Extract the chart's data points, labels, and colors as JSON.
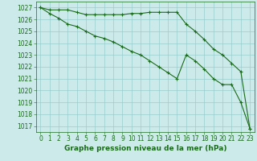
{
  "series1": {
    "x": [
      0,
      1,
      2,
      3,
      4,
      5,
      6,
      7,
      8,
      9,
      10,
      11,
      12,
      13,
      14,
      15,
      16,
      17,
      18,
      19,
      20,
      21,
      22,
      23
    ],
    "y": [
      1027.0,
      1026.8,
      1026.8,
      1026.8,
      1026.6,
      1026.4,
      1026.4,
      1026.4,
      1026.4,
      1026.4,
      1026.5,
      1026.5,
      1026.6,
      1026.6,
      1026.6,
      1026.6,
      1025.6,
      1025.0,
      1024.3,
      1023.5,
      1023.0,
      1022.3,
      1021.6,
      1016.8
    ]
  },
  "series2": {
    "x": [
      0,
      1,
      2,
      3,
      4,
      5,
      6,
      7,
      8,
      9,
      10,
      11,
      12,
      13,
      14,
      15,
      16,
      17,
      18,
      19,
      20,
      21,
      22,
      23
    ],
    "y": [
      1027.0,
      1026.5,
      1026.1,
      1025.6,
      1025.4,
      1025.0,
      1024.6,
      1024.4,
      1024.1,
      1023.7,
      1023.3,
      1023.0,
      1022.5,
      1022.0,
      1021.5,
      1021.0,
      1023.0,
      1022.5,
      1021.8,
      1021.0,
      1020.5,
      1020.5,
      1019.0,
      1016.8
    ]
  },
  "ylim": [
    1016.5,
    1027.5
  ],
  "xlim": [
    -0.5,
    23.5
  ],
  "yticks": [
    1017,
    1018,
    1019,
    1020,
    1021,
    1022,
    1023,
    1024,
    1025,
    1026,
    1027
  ],
  "xticks": [
    0,
    1,
    2,
    3,
    4,
    5,
    6,
    7,
    8,
    9,
    10,
    11,
    12,
    13,
    14,
    15,
    16,
    17,
    18,
    19,
    20,
    21,
    22,
    23
  ],
  "line_color": "#1a6b1a",
  "marker": "+",
  "markersize": 3,
  "linewidth": 0.8,
  "markeredgewidth": 0.8,
  "xlabel": "Graphe pression niveau de la mer (hPa)",
  "bg_color": "#cceaea",
  "grid_color": "#99cccc",
  "tick_label_fontsize": 5.5,
  "xlabel_fontsize": 6.5
}
